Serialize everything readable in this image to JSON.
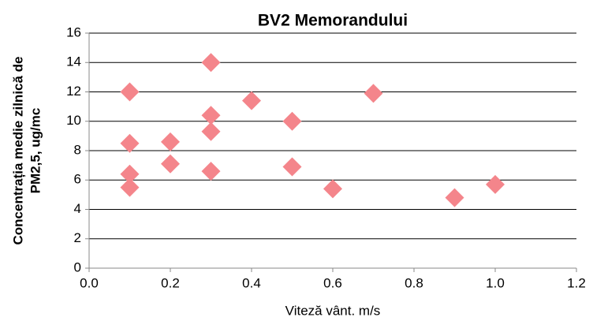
{
  "chart_data": {
    "type": "scatter",
    "title": "BV2 Memorandului",
    "xlabel": "Viteză vânt. m/s",
    "ylabel": [
      "Concentrația medie zilnică de",
      "PM2,5, ug/mc"
    ],
    "color": "#f4858b",
    "x": [
      0.1,
      0.1,
      0.1,
      0.1,
      0.2,
      0.2,
      0.3,
      0.3,
      0.3,
      0.3,
      0.4,
      0.5,
      0.5,
      0.6,
      0.7,
      0.9,
      1.0
    ],
    "values": [
      12.0,
      8.5,
      6.4,
      5.5,
      8.6,
      7.1,
      14.0,
      10.4,
      9.3,
      6.6,
      11.4,
      10.0,
      6.9,
      5.4,
      11.9,
      4.8,
      5.7
    ],
    "xlim": [
      0,
      1.2
    ],
    "xticks": [
      {
        "value": 0,
        "label": "0.0"
      },
      {
        "value": 0.2,
        "label": "0.2"
      },
      {
        "value": 0.4,
        "label": "0.4"
      },
      {
        "value": 0.6,
        "label": "0.6"
      },
      {
        "value": 0.8,
        "label": "0.8"
      },
      {
        "value": 1,
        "label": "1.0"
      },
      {
        "value": 1.2,
        "label": "1.2"
      }
    ],
    "ylim": [
      0,
      16
    ],
    "yticks": [
      0,
      2,
      4,
      6,
      8,
      10,
      12,
      14,
      16
    ],
    "grid": true
  }
}
